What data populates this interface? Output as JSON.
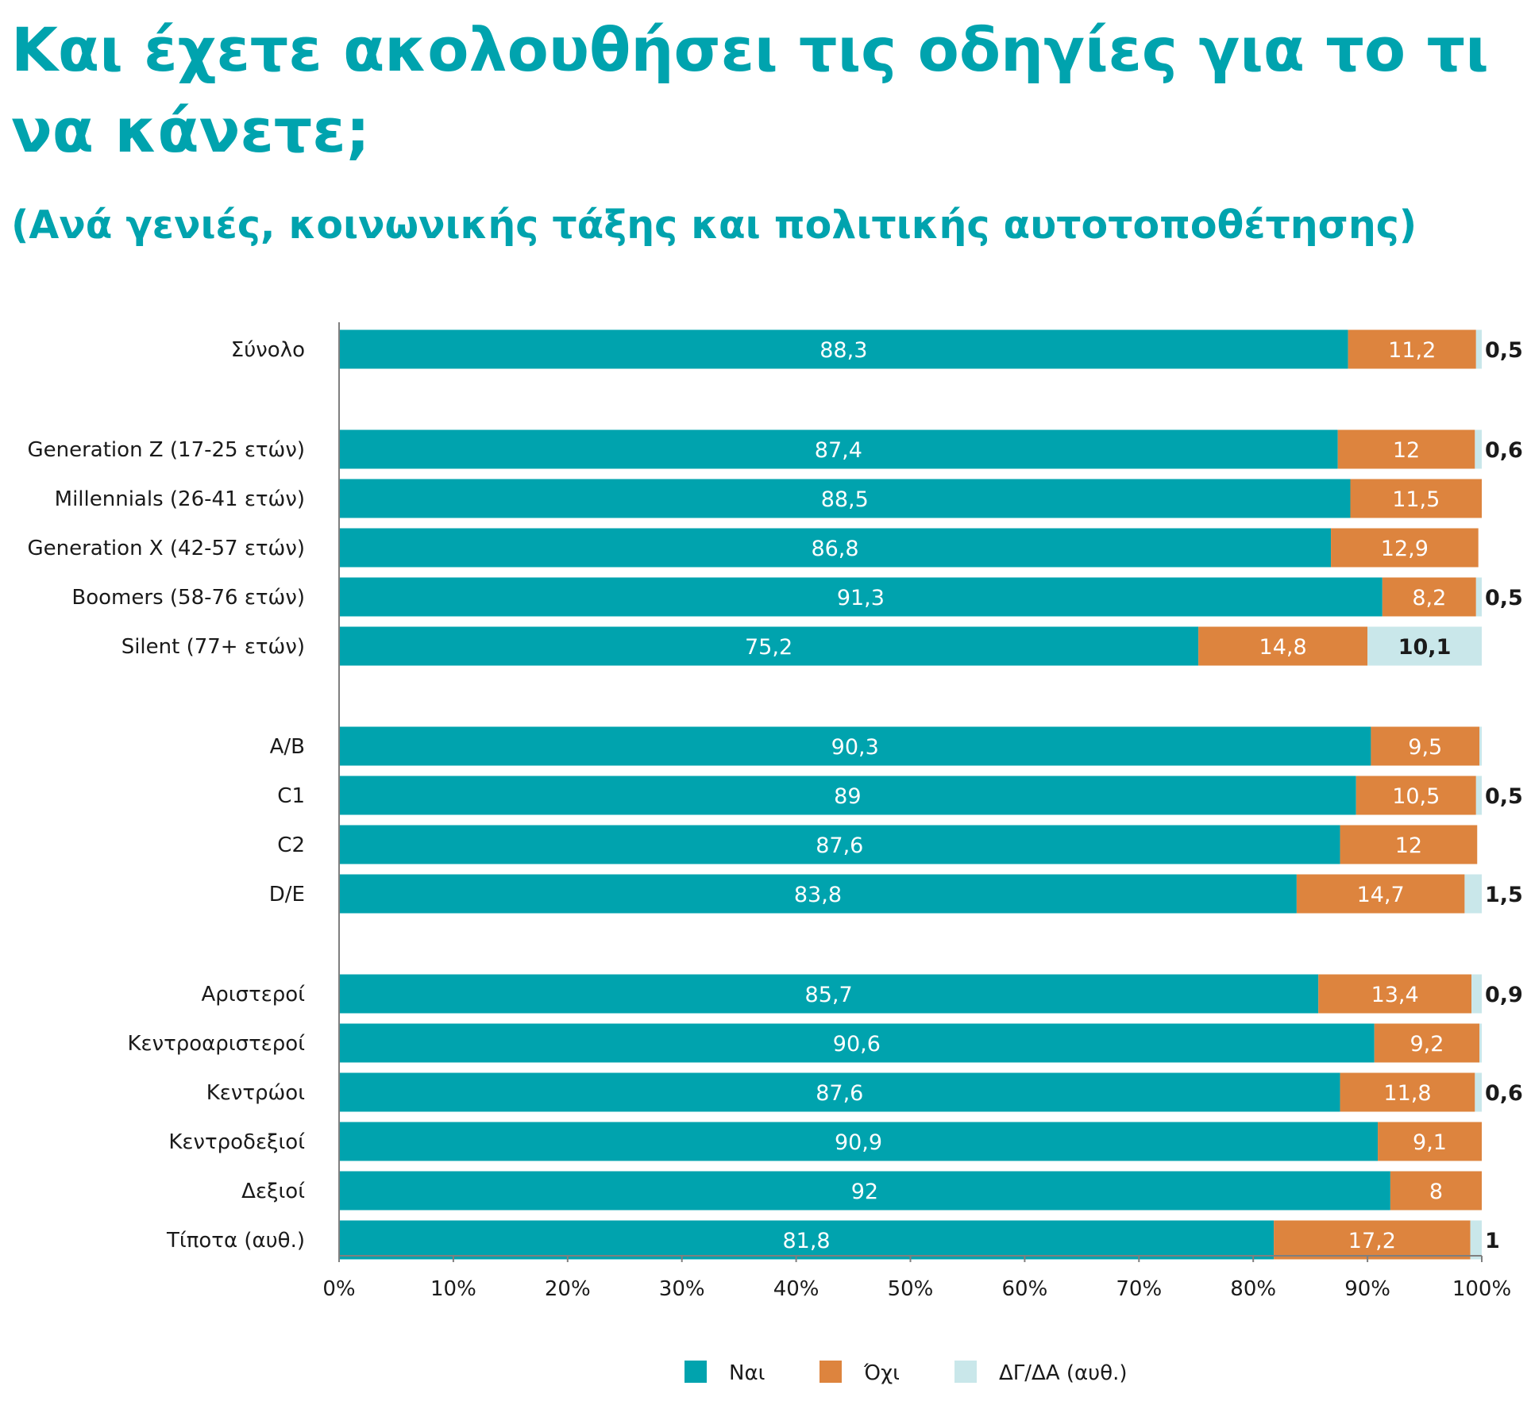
{
  "title": "Και έχετε ακολουθήσει τις οδηγίες για το τι να κάνετε;",
  "subtitle": "(Ανά γενιές, κοινωνικής τάξης και πολιτικής αυτοτοποθέτησης)",
  "colors": {
    "nai": "#00a3ae",
    "oxi": "#dd843e",
    "dk": "#c9e7ea",
    "title": "#00a3ae"
  },
  "chart_data": {
    "type": "bar",
    "orientation": "horizontal",
    "stacked": true,
    "title": "Και έχετε ακολουθήσει τις οδηγίες για το τι να κάνετε;",
    "subtitle": "(Ανά γενιές, κοινωνικής τάξης και πολιτικής αυτοτοποθέτησης)",
    "xlim": [
      0,
      100
    ],
    "xticks": [
      "0%",
      "10%",
      "20%",
      "30%",
      "40%",
      "50%",
      "60%",
      "70%",
      "80%",
      "90%",
      "100%"
    ],
    "legend_position": "bottom",
    "grid": false,
    "categories": [
      "Σύνολο",
      "Generation Z (17-25 ετών)",
      "Millennials (26-41 ετών)",
      "Generation X (42-57 ετών)",
      "Boomers (58-76 ετών)",
      "Silent (77+ ετών)",
      "Α/Β",
      "C1",
      "C2",
      "D/E",
      "Αριστεροί",
      "Κεντροαριστεροί",
      "Κεντρώοι",
      "Κεντροδεξιοί",
      "Δεξιοί",
      "Τίποτα (αυθ.)"
    ],
    "groups": [
      [
        0
      ],
      [
        1,
        2,
        3,
        4,
        5
      ],
      [
        6,
        7,
        8,
        9
      ],
      [
        10,
        11,
        12,
        13,
        14,
        15
      ]
    ],
    "series": [
      {
        "name": "Ναι",
        "values": [
          88.3,
          87.4,
          88.5,
          86.8,
          91.3,
          75.2,
          90.3,
          89,
          87.6,
          83.8,
          85.7,
          90.6,
          87.6,
          90.9,
          92,
          81.8
        ],
        "labels": [
          "88,3",
          "87,4",
          "88,5",
          "86,8",
          "91,3",
          "75,2",
          "90,3",
          "89",
          "87,6",
          "83,8",
          "85,7",
          "90,6",
          "87,6",
          "90,9",
          "92",
          "81,8"
        ]
      },
      {
        "name": "Όχι",
        "values": [
          11.2,
          12,
          11.5,
          12.9,
          8.2,
          14.8,
          9.5,
          10.5,
          12,
          14.7,
          13.4,
          9.2,
          11.8,
          9.1,
          8,
          17.2
        ],
        "labels": [
          "11,2",
          "12",
          "11,5",
          "12,9",
          "8,2",
          "14,8",
          "9,5",
          "10,5",
          "12",
          "14,7",
          "13,4",
          "9,2",
          "11,8",
          "9,1",
          "8",
          "17,2"
        ]
      },
      {
        "name": "ΔΓ/ΔΑ (αυθ.)",
        "values": [
          0.5,
          0.6,
          0,
          0,
          0.5,
          10.1,
          0.2,
          0.5,
          0,
          1.5,
          0.9,
          0.2,
          0.6,
          0,
          0,
          1
        ],
        "labels": [
          "0,5",
          "0,6",
          "",
          "",
          "0,5",
          "10,1",
          "",
          "0,5",
          "",
          "1,5",
          "0,9",
          "",
          "0,6",
          "",
          "",
          "1"
        ]
      }
    ]
  }
}
